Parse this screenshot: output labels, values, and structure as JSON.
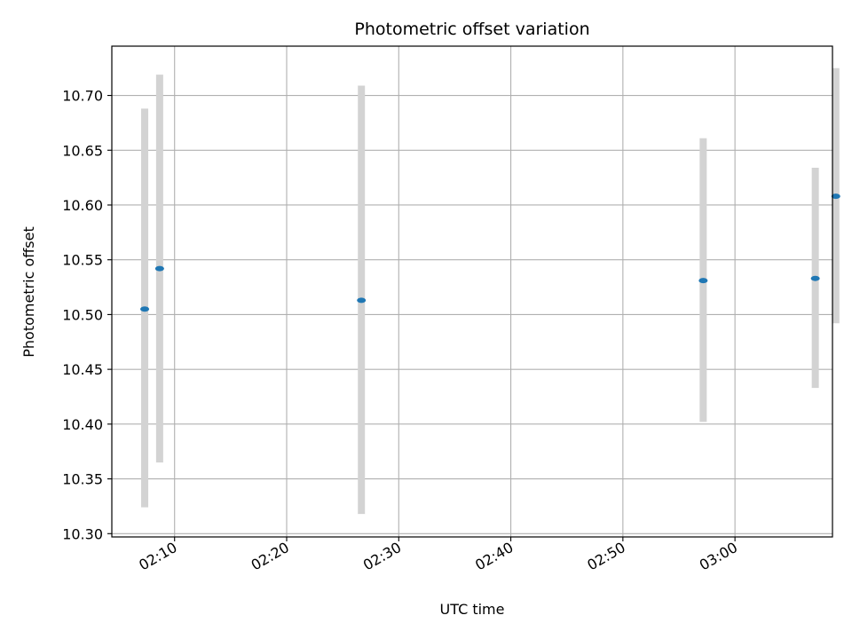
{
  "chart_data": {
    "type": "scatter",
    "title": "Photometric offset variation",
    "xlabel": "UTC time",
    "ylabel": "Photometric offset",
    "x_format": "HH:MM",
    "xlim": [
      "02:04:24",
      "03:08:42"
    ],
    "ylim": [
      10.297,
      10.745
    ],
    "grid": true,
    "x_ticks": [
      "02:10",
      "02:20",
      "02:30",
      "02:40",
      "02:50",
      "03:00"
    ],
    "y_ticks": [
      "10.30",
      "10.35",
      "10.40",
      "10.45",
      "10.50",
      "10.55",
      "10.60",
      "10.65",
      "10.70"
    ],
    "points": [
      {
        "x": "02:07:20",
        "y": 10.505,
        "err_low": 10.324,
        "err_high": 10.688
      },
      {
        "x": "02:08:40",
        "y": 10.542,
        "err_low": 10.365,
        "err_high": 10.719
      },
      {
        "x": "02:26:40",
        "y": 10.513,
        "err_low": 10.318,
        "err_high": 10.709
      },
      {
        "x": "02:57:10",
        "y": 10.531,
        "err_low": 10.402,
        "err_high": 10.661
      },
      {
        "x": "03:07:10",
        "y": 10.533,
        "err_low": 10.433,
        "err_high": 10.634
      },
      {
        "x": "03:09:00",
        "y": 10.608,
        "err_low": 10.492,
        "err_high": 10.725
      }
    ],
    "colors": {
      "point": "#1f77b4",
      "errorbar": "#d3d3d3",
      "grid": "#b0b0b0",
      "axes": "#000000"
    }
  }
}
